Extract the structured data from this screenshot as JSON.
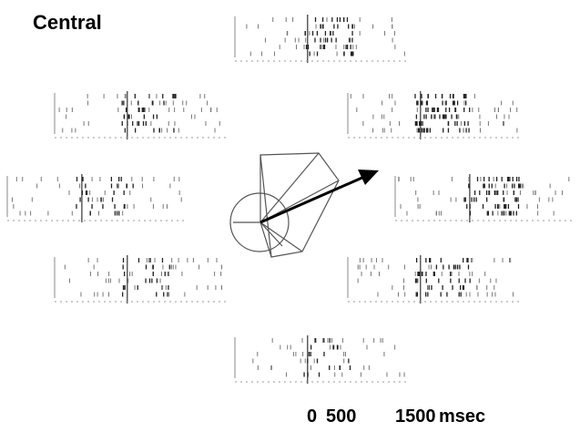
{
  "title": "Central",
  "time_scale": {
    "tick_0": "0",
    "tick_500": "500",
    "tick_1500": "1500",
    "unit": "msec"
  },
  "rasters": [
    {
      "direction": "up",
      "trials": 6,
      "burst_density": 0.55
    },
    {
      "direction": "up-right",
      "trials": 6,
      "burst_density": 0.9
    },
    {
      "direction": "right",
      "trials": 6,
      "burst_density": 0.75
    },
    {
      "direction": "down-right",
      "trials": 6,
      "burst_density": 0.6
    },
    {
      "direction": "down",
      "trials": 6,
      "burst_density": 0.2
    },
    {
      "direction": "down-left",
      "trials": 6,
      "burst_density": 0.3
    },
    {
      "direction": "left",
      "trials": 6,
      "burst_density": 0.35
    },
    {
      "direction": "up-left",
      "trials": 6,
      "burst_density": 0.45
    }
  ],
  "diagram": {
    "shape": "arm-pentagon",
    "arrow": "population-vector"
  }
}
